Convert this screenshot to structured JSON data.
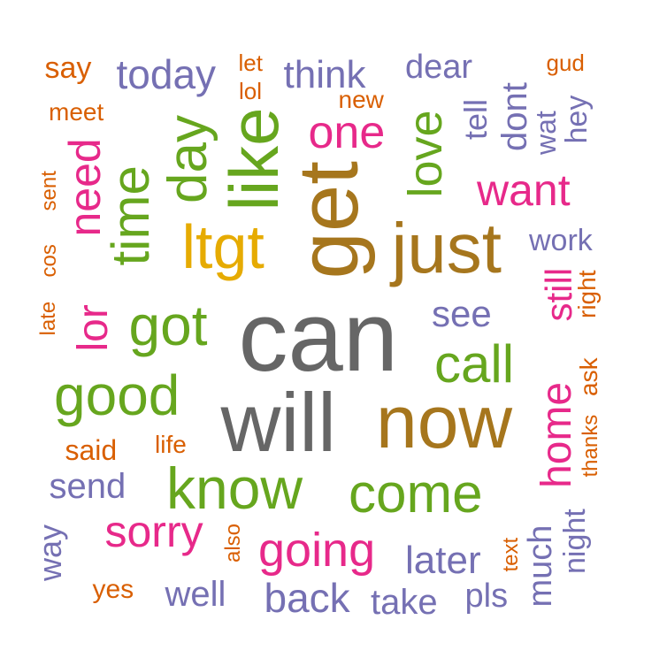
{
  "palette": {
    "gray": "#666666",
    "brown": "#a6761d",
    "gold": "#e6ab02",
    "green": "#66a61e",
    "pink": "#e7298a",
    "purple": "#7570b3",
    "orange": "#d95f02"
  },
  "words": [
    {
      "text": "can",
      "color": "gray"
    },
    {
      "text": "will",
      "color": "gray"
    },
    {
      "text": "get",
      "color": "brown"
    },
    {
      "text": "just",
      "color": "brown"
    },
    {
      "text": "now",
      "color": "brown"
    },
    {
      "text": "ltgt",
      "color": "gold"
    },
    {
      "text": "like",
      "color": "green"
    },
    {
      "text": "day",
      "color": "green"
    },
    {
      "text": "time",
      "color": "green"
    },
    {
      "text": "got",
      "color": "green"
    },
    {
      "text": "good",
      "color": "green"
    },
    {
      "text": "know",
      "color": "green"
    },
    {
      "text": "come",
      "color": "green"
    },
    {
      "text": "call",
      "color": "green"
    },
    {
      "text": "love",
      "color": "green"
    },
    {
      "text": "one",
      "color": "pink"
    },
    {
      "text": "want",
      "color": "pink"
    },
    {
      "text": "need",
      "color": "pink"
    },
    {
      "text": "lor",
      "color": "pink"
    },
    {
      "text": "home",
      "color": "pink"
    },
    {
      "text": "still",
      "color": "pink"
    },
    {
      "text": "sorry",
      "color": "pink"
    },
    {
      "text": "going",
      "color": "pink"
    },
    {
      "text": "today",
      "color": "purple"
    },
    {
      "text": "think",
      "color": "purple"
    },
    {
      "text": "dear",
      "color": "purple"
    },
    {
      "text": "tell",
      "color": "purple"
    },
    {
      "text": "dont",
      "color": "purple"
    },
    {
      "text": "wat",
      "color": "purple"
    },
    {
      "text": "hey",
      "color": "purple"
    },
    {
      "text": "work",
      "color": "purple"
    },
    {
      "text": "see",
      "color": "purple"
    },
    {
      "text": "send",
      "color": "purple"
    },
    {
      "text": "way",
      "color": "purple"
    },
    {
      "text": "well",
      "color": "purple"
    },
    {
      "text": "back",
      "color": "purple"
    },
    {
      "text": "take",
      "color": "purple"
    },
    {
      "text": "later",
      "color": "purple"
    },
    {
      "text": "pls",
      "color": "purple"
    },
    {
      "text": "much",
      "color": "purple"
    },
    {
      "text": "night",
      "color": "purple"
    },
    {
      "text": "say",
      "color": "orange"
    },
    {
      "text": "let",
      "color": "orange"
    },
    {
      "text": "lol",
      "color": "orange"
    },
    {
      "text": "new",
      "color": "orange"
    },
    {
      "text": "meet",
      "color": "orange"
    },
    {
      "text": "gud",
      "color": "orange"
    },
    {
      "text": "sent",
      "color": "orange"
    },
    {
      "text": "cos",
      "color": "orange"
    },
    {
      "text": "late",
      "color": "orange"
    },
    {
      "text": "right",
      "color": "orange"
    },
    {
      "text": "ask",
      "color": "orange"
    },
    {
      "text": "thanks",
      "color": "orange"
    },
    {
      "text": "said",
      "color": "orange"
    },
    {
      "text": "life",
      "color": "orange"
    },
    {
      "text": "also",
      "color": "orange"
    },
    {
      "text": "text",
      "color": "orange"
    },
    {
      "text": "yes",
      "color": "orange"
    }
  ]
}
